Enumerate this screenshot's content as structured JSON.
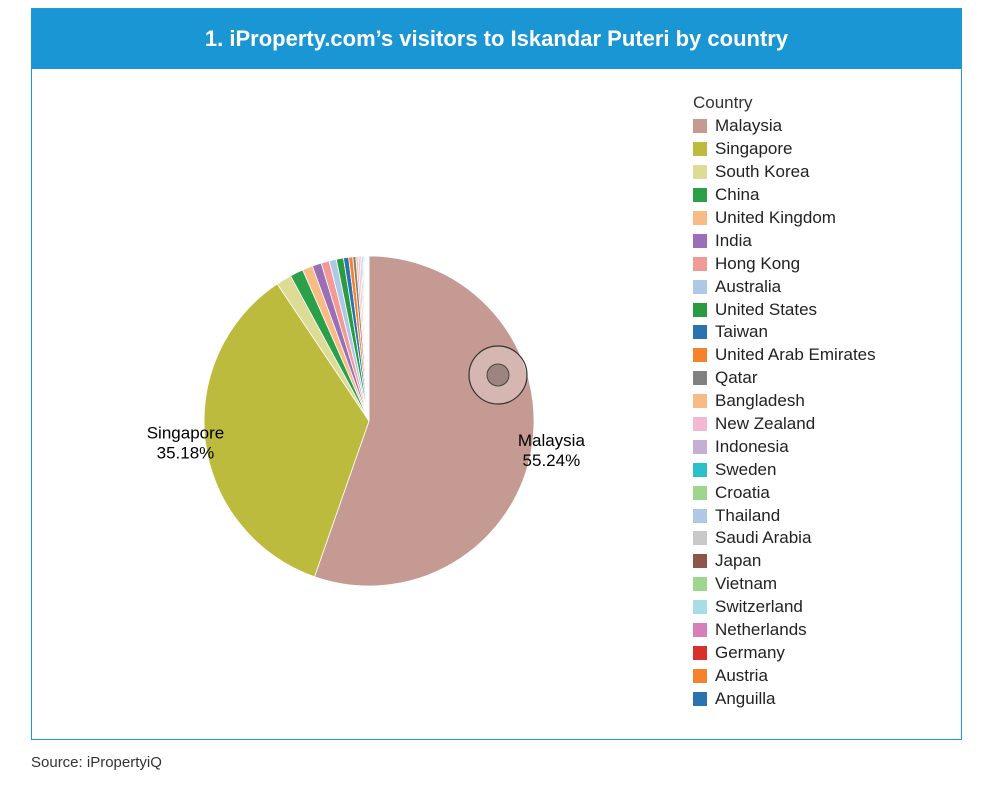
{
  "title": "1. iProperty.com’s visitors to Iskandar Puteri by country",
  "source": "Source: iPropertyiQ",
  "chart_data": {
    "type": "pie",
    "title": "1. iProperty.com’s visitors to Iskandar Puteri by country",
    "legend_title": "Country",
    "legend_placement": "right",
    "slices": [
      {
        "name": "Malaysia",
        "value": 55.24,
        "color": "#c49a93",
        "label": "Malaysia",
        "value_label": "55.24%"
      },
      {
        "name": "Singapore",
        "value": 35.18,
        "color": "#bdbb3d",
        "label": "Singapore",
        "value_label": "35.18%"
      },
      {
        "name": "South Korea",
        "value": 1.5,
        "color": "#dcdc97",
        "label": "",
        "value_label": ""
      },
      {
        "name": "China",
        "value": 1.3,
        "color": "#2ca048",
        "label": "",
        "value_label": ""
      },
      {
        "name": "United Kingdom",
        "value": 1.0,
        "color": "#f9bb85",
        "label": "",
        "value_label": ""
      },
      {
        "name": "India",
        "value": 0.9,
        "color": "#9a6fb6",
        "label": "",
        "value_label": ""
      },
      {
        "name": "Hong Kong",
        "value": 0.8,
        "color": "#f29a96",
        "label": "",
        "value_label": ""
      },
      {
        "name": "Australia",
        "value": 0.7,
        "color": "#aec8e8",
        "label": "",
        "value_label": ""
      },
      {
        "name": "United States",
        "value": 0.7,
        "color": "#2a9c3f",
        "label": "",
        "value_label": ""
      },
      {
        "name": "Taiwan",
        "value": 0.5,
        "color": "#2a72b0",
        "label": "",
        "value_label": ""
      },
      {
        "name": "United Arab Emirates",
        "value": 0.4,
        "color": "#f5822d",
        "label": "",
        "value_label": ""
      },
      {
        "name": "Qatar",
        "value": 0.3,
        "color": "#818181",
        "label": "",
        "value_label": ""
      },
      {
        "name": "Bangladesh",
        "value": 0.2,
        "color": "#f9bb85",
        "label": "",
        "value_label": ""
      },
      {
        "name": "New Zealand",
        "value": 0.2,
        "color": "#f5b8d2",
        "label": "",
        "value_label": ""
      },
      {
        "name": "Indonesia",
        "value": 0.15,
        "color": "#c4b0d6",
        "label": "",
        "value_label": ""
      },
      {
        "name": "Sweden",
        "value": 0.12,
        "color": "#2cbfcc",
        "label": "",
        "value_label": ""
      },
      {
        "name": "Croatia",
        "value": 0.1,
        "color": "#9fd68f",
        "label": "",
        "value_label": ""
      },
      {
        "name": "Thailand",
        "value": 0.1,
        "color": "#aec8e8",
        "label": "",
        "value_label": ""
      },
      {
        "name": "Saudi Arabia",
        "value": 0.08,
        "color": "#c9c9c9",
        "label": "",
        "value_label": ""
      },
      {
        "name": "Japan",
        "value": 0.07,
        "color": "#8c564b",
        "label": "",
        "value_label": ""
      },
      {
        "name": "Vietnam",
        "value": 0.06,
        "color": "#9fd68f",
        "label": "",
        "value_label": ""
      },
      {
        "name": "Switzerland",
        "value": 0.05,
        "color": "#a6dde6",
        "label": "",
        "value_label": ""
      },
      {
        "name": "Netherlands",
        "value": 0.05,
        "color": "#d77fb7",
        "label": "",
        "value_label": ""
      },
      {
        "name": "Germany",
        "value": 0.04,
        "color": "#d6312d",
        "label": "",
        "value_label": ""
      },
      {
        "name": "Austria",
        "value": 0.03,
        "color": "#f5822d",
        "label": "",
        "value_label": ""
      },
      {
        "name": "Anguilla",
        "value": 0.02,
        "color": "#2a72b0",
        "label": "",
        "value_label": ""
      }
    ]
  }
}
